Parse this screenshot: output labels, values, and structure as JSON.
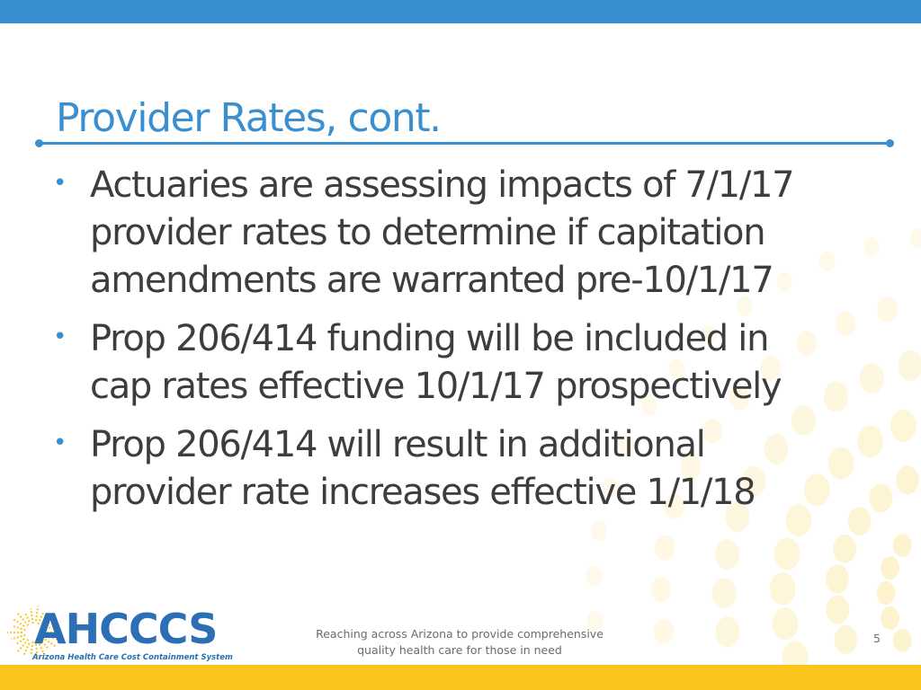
{
  "slide": {
    "title": "Provider Rates, cont.",
    "bullets": [
      {
        "lines": [
          "Actuaries are assessing impacts of 7/1/17",
          "provider rates to determine if capitation",
          "amendments are warranted pre-10/1/17"
        ]
      },
      {
        "lines": [
          "Prop 206/414 funding will be included in",
          "cap rates effective 10/1/17 prospectively"
        ]
      },
      {
        "lines": [
          "Prop 206/414 will result in additional",
          "provider rate increases effective 1/1/18"
        ]
      }
    ],
    "bullet_glyph": "•"
  },
  "footer": {
    "tagline_line1": "Reaching across Arizona to provide comprehensive",
    "tagline_line2": "quality health care for those in need",
    "page_number": "5"
  },
  "logo": {
    "name": "AHCCCS",
    "subtitle": "Arizona Health Care Cost Containment System",
    "icon": "sun-icon"
  },
  "colors": {
    "accent_blue": "#3a8fd0",
    "accent_yellow": "#f9c51a",
    "body_text": "#3d3d3d",
    "sunburst": "#fbe9a8"
  }
}
